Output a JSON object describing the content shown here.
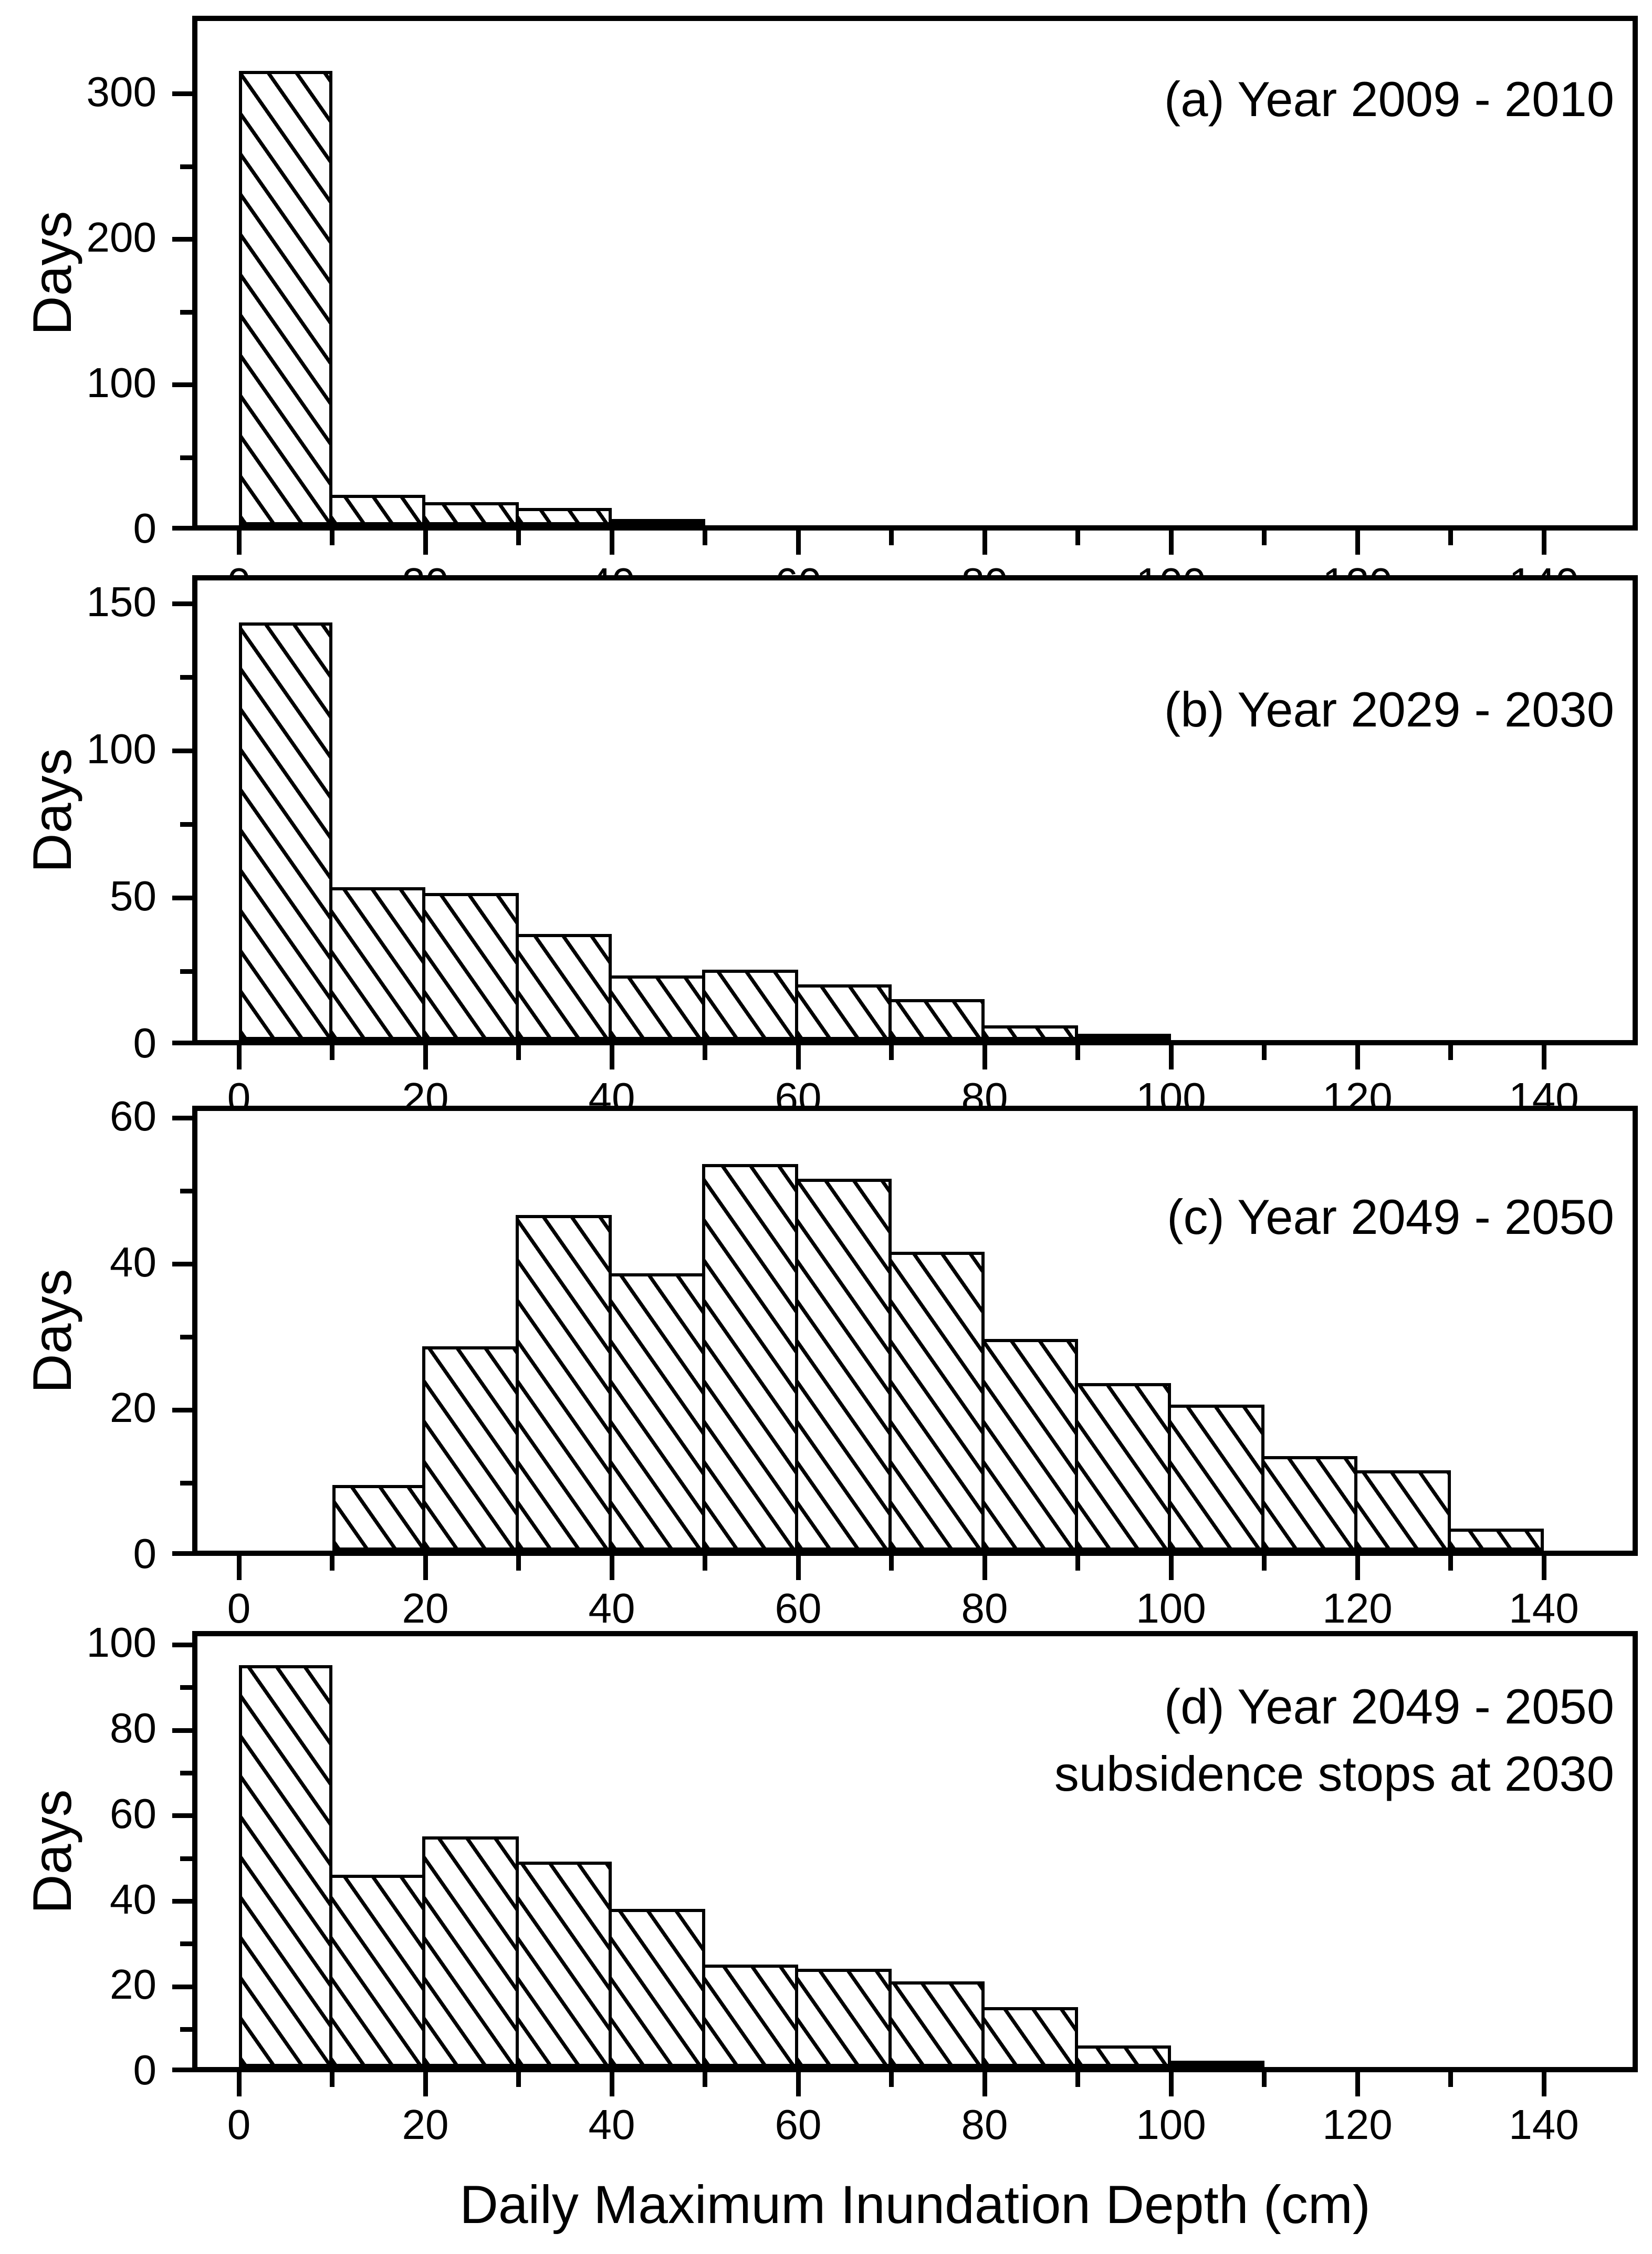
{
  "figure": {
    "xlabel": "Daily Maximum Inundation Depth (cm)",
    "ylabel": "Days",
    "background_color": "#ffffff",
    "ink_color": "#000000"
  },
  "chart_data": {
    "type": "bar",
    "subtype": "histogram",
    "hatch": "diagonal-down",
    "shared_x": {
      "label": "Daily Maximum Inundation Depth (cm)",
      "unit": "cm",
      "bin_width": 10,
      "major_ticks": [
        0,
        20,
        40,
        60,
        80,
        100,
        120,
        140
      ],
      "minor_ticks": [
        10,
        30,
        50,
        70,
        90,
        110,
        130
      ],
      "xlim": [
        -5,
        150
      ]
    },
    "panels": [
      {
        "id": "a",
        "annotation": "(a) Year 2009 - 2010",
        "annotation_line2": "",
        "ylim": [
          0,
          350
        ],
        "y_major_ticks": [
          0,
          100,
          200,
          300
        ],
        "y_minor_ticks": [
          50,
          150,
          250
        ],
        "bins": [
          {
            "range_cm": "0-10",
            "days": 312
          },
          {
            "range_cm": "10-20",
            "days": 21
          },
          {
            "range_cm": "20-30",
            "days": 16
          },
          {
            "range_cm": "30-40",
            "days": 12
          },
          {
            "range_cm": "40-50",
            "days": 4
          }
        ]
      },
      {
        "id": "b",
        "annotation": "(b) Year 2029 - 2030",
        "annotation_line2": "",
        "ylim": [
          0,
          158
        ],
        "y_major_ticks": [
          0,
          50,
          100,
          150
        ],
        "y_minor_ticks": [
          25,
          75,
          125
        ],
        "bins": [
          {
            "range_cm": "0-10",
            "days": 142
          },
          {
            "range_cm": "10-20",
            "days": 52
          },
          {
            "range_cm": "20-30",
            "days": 50
          },
          {
            "range_cm": "30-40",
            "days": 36
          },
          {
            "range_cm": "40-50",
            "days": 22
          },
          {
            "range_cm": "50-60",
            "days": 24
          },
          {
            "range_cm": "60-70",
            "days": 19
          },
          {
            "range_cm": "70-80",
            "days": 14
          },
          {
            "range_cm": "80-90",
            "days": 5
          },
          {
            "range_cm": "90-100",
            "days": 1
          }
        ]
      },
      {
        "id": "c",
        "annotation": "(c) Year 2049 - 2050",
        "annotation_line2": "",
        "ylim": [
          0,
          61
        ],
        "y_major_ticks": [
          0,
          20,
          40,
          60
        ],
        "y_minor_ticks": [
          10,
          30,
          50
        ],
        "bins": [
          {
            "range_cm": "10-20",
            "days": 9
          },
          {
            "range_cm": "20-30",
            "days": 28
          },
          {
            "range_cm": "30-40",
            "days": 46
          },
          {
            "range_cm": "40-50",
            "days": 38
          },
          {
            "range_cm": "50-60",
            "days": 53
          },
          {
            "range_cm": "60-70",
            "days": 51
          },
          {
            "range_cm": "70-80",
            "days": 41
          },
          {
            "range_cm": "80-90",
            "days": 29
          },
          {
            "range_cm": "90-100",
            "days": 23
          },
          {
            "range_cm": "100-110",
            "days": 20
          },
          {
            "range_cm": "110-120",
            "days": 13
          },
          {
            "range_cm": "120-130",
            "days": 11
          },
          {
            "range_cm": "130-140",
            "days": 3
          }
        ]
      },
      {
        "id": "d",
        "annotation": "(d) Year 2049 - 2050",
        "annotation_line2": "subsidence stops at 2030",
        "ylim": [
          0,
          102
        ],
        "y_major_ticks": [
          0,
          20,
          40,
          60,
          80,
          100
        ],
        "y_minor_ticks": [
          10,
          30,
          50,
          70,
          90
        ],
        "bins": [
          {
            "range_cm": "0-10",
            "days": 94
          },
          {
            "range_cm": "10-20",
            "days": 45
          },
          {
            "range_cm": "20-30",
            "days": 54
          },
          {
            "range_cm": "30-40",
            "days": 48
          },
          {
            "range_cm": "40-50",
            "days": 37
          },
          {
            "range_cm": "50-60",
            "days": 24
          },
          {
            "range_cm": "60-70",
            "days": 23
          },
          {
            "range_cm": "70-80",
            "days": 20
          },
          {
            "range_cm": "80-90",
            "days": 14
          },
          {
            "range_cm": "90-100",
            "days": 5
          },
          {
            "range_cm": "100-110",
            "days": 1
          }
        ]
      }
    ]
  }
}
